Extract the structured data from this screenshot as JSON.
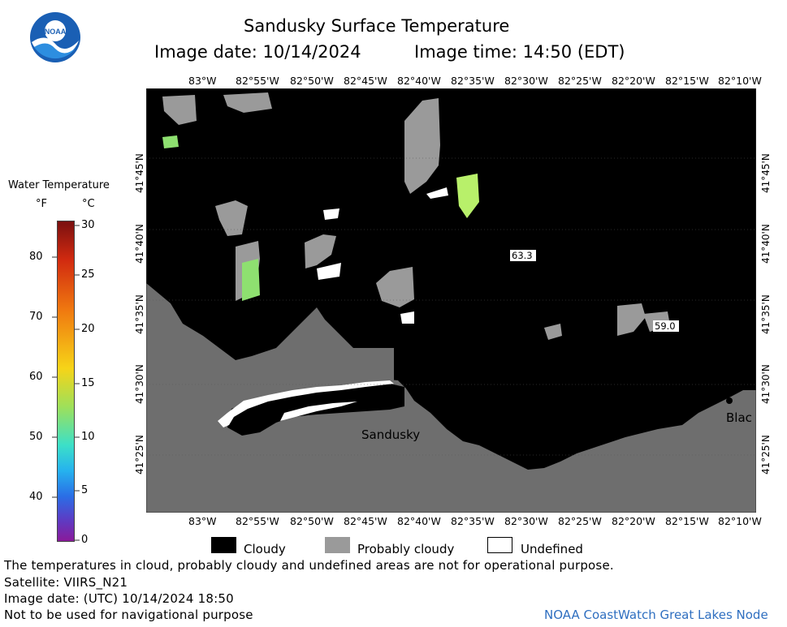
{
  "header": {
    "title": "Sandusky Surface Temperature",
    "image_date": "Image date: 10/14/2024",
    "image_time": "Image time: 14:50 (EDT)"
  },
  "logo": {
    "text": "NOAA"
  },
  "colorbar": {
    "title": "Water Temperature",
    "unit_f": "°F",
    "unit_c": "°C",
    "f_ticks": [
      "80",
      "70",
      "60",
      "50",
      "40"
    ],
    "c_ticks": [
      "30",
      "25",
      "20",
      "15",
      "10",
      "5",
      "0"
    ]
  },
  "map": {
    "lon_top": [
      "83°W",
      "82°55'W",
      "82°50'W",
      "82°45'W",
      "82°40'W",
      "82°35'W",
      "82°30'W",
      "82°25'W",
      "82°20'W",
      "82°15'W",
      "82°10'W"
    ],
    "lon_bottom": [
      "83°W",
      "82°55'W",
      "82°50'W",
      "82°45'W",
      "82°40'W",
      "82°35'W",
      "82°30'W",
      "82°25'W",
      "82°20'W",
      "82°15'W",
      "82°10'W"
    ],
    "lat_left": [
      "41°45'N",
      "41°40'N",
      "41°35'N",
      "41°30'N",
      "41°25'N"
    ],
    "lat_right": [
      "41°45'N",
      "41°40'N",
      "41°35'N",
      "41°30'N",
      "41°25'N"
    ],
    "labels": {
      "sandusky": "Sandusky",
      "bla": "Blac",
      "temp1": "63.3",
      "temp2": "59.0"
    },
    "colors": {
      "cloud": "#000000",
      "land": "#6e6e6e",
      "probably_cloudy": "#9a9a9a",
      "undefined": "#ffffff",
      "warm": "#b8f06a",
      "green": "#8ee070"
    }
  },
  "legend": {
    "cloudy": "Cloudy",
    "probably_cloudy": "Probably cloudy",
    "undefined": "Undefined"
  },
  "footer": {
    "line1": "The temperatures in cloud, probably cloudy and undefined areas are not for operational purpose.",
    "line2": "Satellite: VIIRS_N21",
    "line3": "Image date: (UTC) 10/14/2024  18:50",
    "line4": "Not to be used for navigational purpose",
    "credit": "NOAA CoastWatch Great Lakes Node"
  }
}
